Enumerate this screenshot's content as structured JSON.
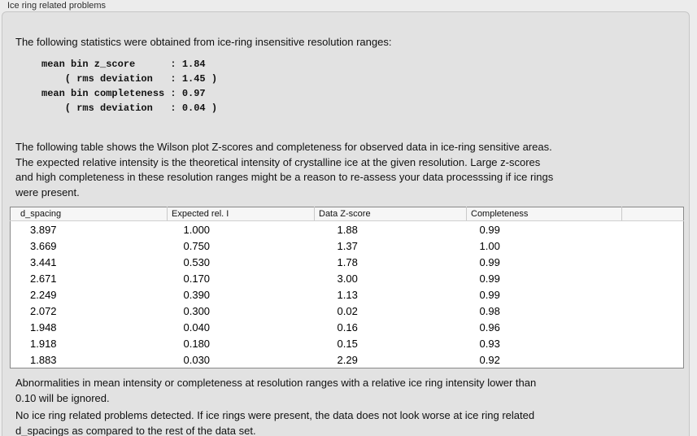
{
  "panel": {
    "title": "Ice ring related problems"
  },
  "intro": "The following statistics were obtained from ice-ring insensitive resolution ranges:",
  "stats_block": "mean bin z_score      : 1.84\n    ( rms deviation   : 1.45 )\nmean bin completeness : 0.97\n    ( rms deviation   : 0.04 )",
  "description": "The following table shows the Wilson plot Z-scores and completeness for observed data in ice-ring sensitive areas.\nThe expected relative intensity is the theoretical intensity of crystalline ice at the given resolution. Large z-scores\nand high completeness in these resolution ranges might be a reason to re-assess your data processsing if ice rings\nwere present.",
  "table": {
    "columns": [
      "d_spacing",
      "Expected rel. I",
      "Data Z-score",
      "Completeness",
      ""
    ],
    "rows": [
      [
        "3.897",
        "1.000",
        "1.88",
        "0.99"
      ],
      [
        "3.669",
        "0.750",
        "1.37",
        "1.00"
      ],
      [
        "3.441",
        "0.530",
        "1.78",
        "0.99"
      ],
      [
        "2.671",
        "0.170",
        "3.00",
        "0.99"
      ],
      [
        "2.249",
        "0.390",
        "1.13",
        "0.99"
      ],
      [
        "2.072",
        "0.300",
        "0.02",
        "0.98"
      ],
      [
        "1.948",
        "0.040",
        "0.16",
        "0.96"
      ],
      [
        "1.918",
        "0.180",
        "0.15",
        "0.93"
      ],
      [
        "1.883",
        "0.030",
        "2.29",
        "0.92"
      ]
    ]
  },
  "ignore_note": "Abnormalities in mean intensity or completeness at resolution ranges with a relative ice ring intensity lower than\n0.10 will be ignored.",
  "conclusion": "No ice ring related problems detected. If ice rings were present, the data does not look worse at ice ring related\nd_spacings as compared to the rest of the data set.",
  "colors": {
    "page_bg": "#ececec",
    "box_bg": "#e2e2e2",
    "box_border": "#c6c6c6",
    "table_border": "#898989",
    "header_bg": "#f6f6f6",
    "header_separator": "#c9c9c9",
    "text": "#111111"
  }
}
